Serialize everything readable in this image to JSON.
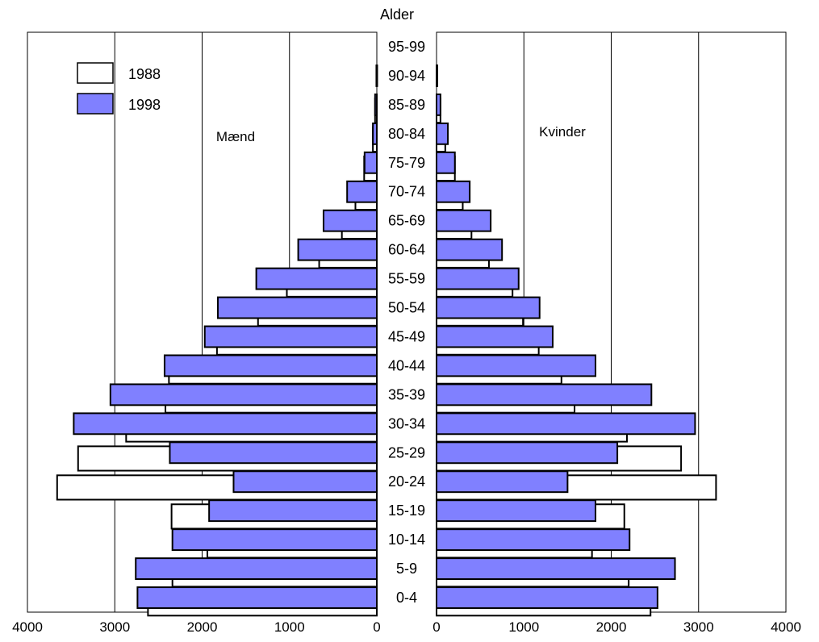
{
  "chart_data": {
    "type": "bar",
    "orientation": "horizontal-population-pyramid",
    "age_axis_title": "Alder",
    "categories": [
      "95-99",
      "90-94",
      "85-89",
      "80-84",
      "75-79",
      "70-74",
      "65-69",
      "60-64",
      "55-59",
      "50-54",
      "45-49",
      "40-44",
      "35-39",
      "30-34",
      "25-29",
      "20-24",
      "15-19",
      "10-14",
      "5-9",
      "0-4"
    ],
    "panels": [
      {
        "label": "Mænd",
        "side": "left",
        "xlim": [
          4000,
          0
        ],
        "xticks": [
          "4000",
          "3000",
          "2000",
          "1000",
          "0"
        ],
        "grid": true,
        "series": [
          {
            "name": "1988",
            "values": [
              0,
              0,
              20,
              45,
              145,
              245,
              400,
              660,
              1030,
              1360,
              1830,
              2380,
              2420,
              2870,
              3420,
              3660,
              2350,
              1940,
              2340,
              2620
            ]
          },
          {
            "name": "1998",
            "values": [
              0,
              5,
              20,
              45,
              140,
              340,
              610,
              900,
              1380,
              1820,
              1970,
              2430,
              3050,
              3470,
              2370,
              1640,
              1920,
              2340,
              2760,
              2740
            ]
          }
        ]
      },
      {
        "label": "Kvinder",
        "side": "right",
        "xlim": [
          0,
          4000
        ],
        "xticks": [
          "0",
          "1000",
          "2000",
          "3000",
          "4000"
        ],
        "grid": true,
        "series": [
          {
            "name": "1988",
            "values": [
              0,
              0,
              45,
              100,
              210,
              300,
              400,
              600,
              870,
              990,
              1170,
              1430,
              1580,
              2180,
              2800,
              3200,
              2150,
              1780,
              2200,
              2450
            ]
          },
          {
            "name": "1998",
            "values": [
              0,
              5,
              45,
              130,
              210,
              380,
              620,
              750,
              940,
              1180,
              1330,
              1820,
              2460,
              2960,
              2070,
              1500,
              1820,
              2210,
              2730,
              2530
            ]
          }
        ]
      }
    ],
    "legend": {
      "placement": "top-left",
      "entries": [
        {
          "name": "1988",
          "color": "#ffffff"
        },
        {
          "name": "1998",
          "color": "#8080ff"
        }
      ]
    },
    "colors": {
      "1988": "#ffffff",
      "1998": "#8080ff",
      "stroke": "#000000",
      "grid": "#000000"
    }
  }
}
